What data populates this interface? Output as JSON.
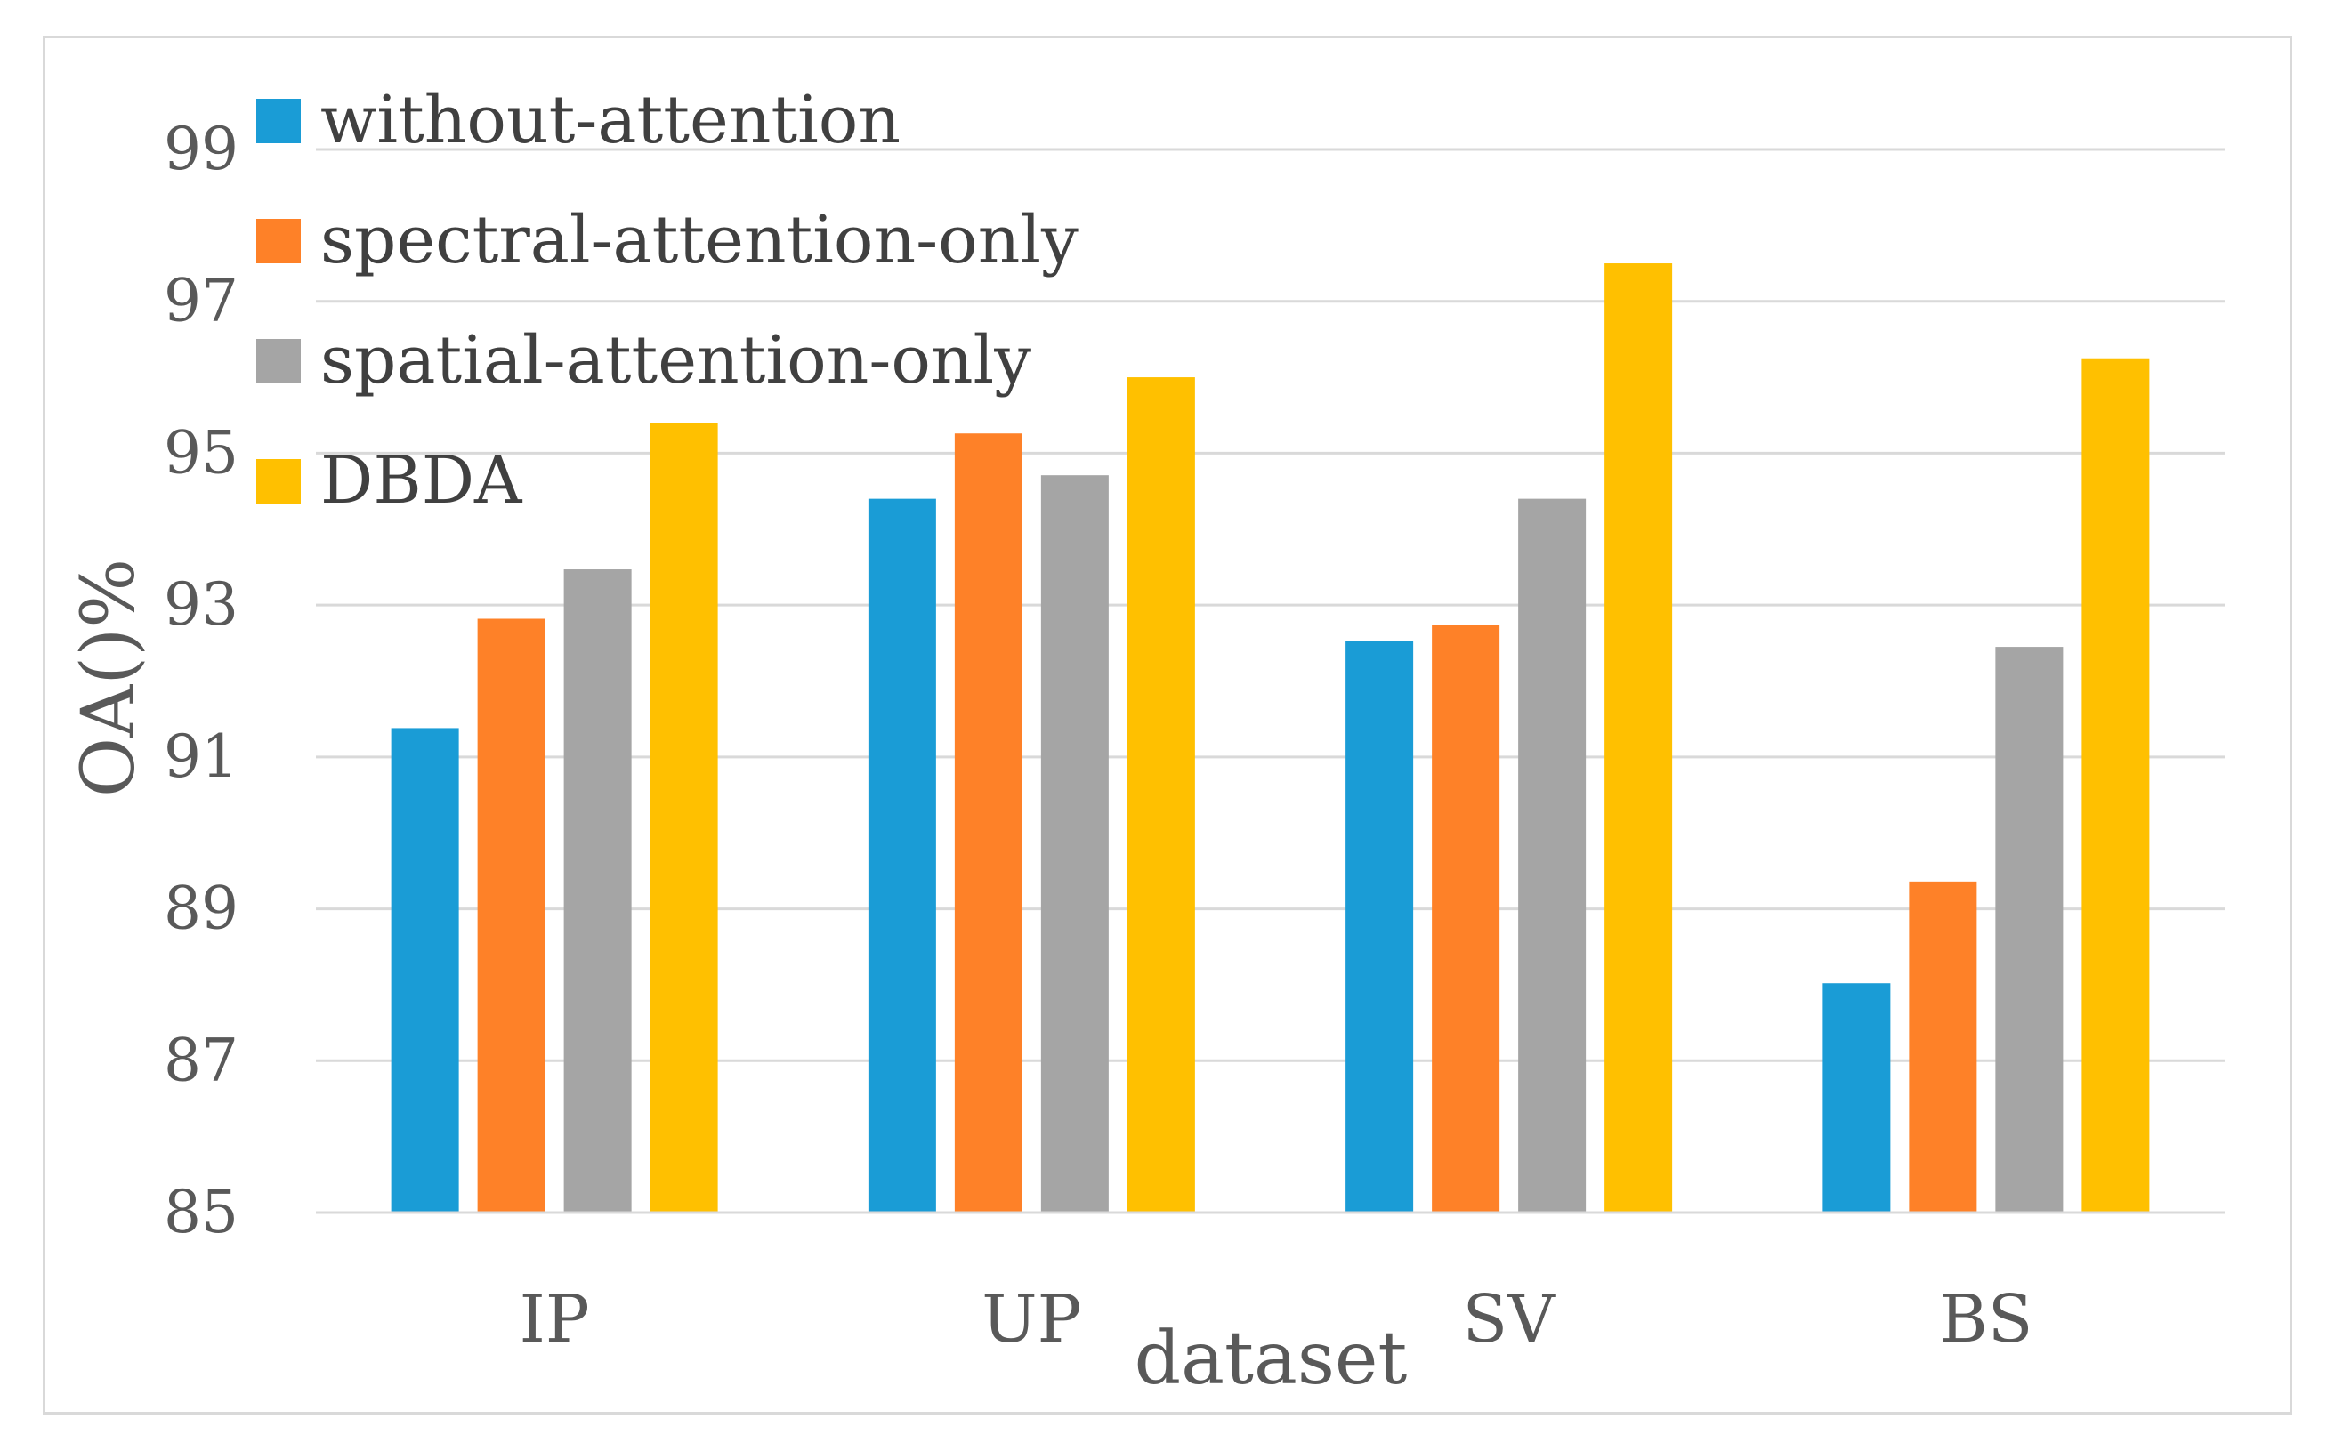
{
  "chart_data": {
    "type": "bar",
    "title": "",
    "xlabel": "dataset",
    "ylabel": "OA()%",
    "ylim": [
      85,
      99
    ],
    "yticks": [
      85,
      87,
      89,
      91,
      93,
      95,
      97,
      99
    ],
    "grid": true,
    "legend_position": "top-left",
    "categories": [
      "IP",
      "UP",
      "SV",
      "BS"
    ],
    "series": [
      {
        "name": "without-attention",
        "color": "#1a9cd6",
        "values": [
          91.38,
          94.4,
          92.53,
          88.02
        ]
      },
      {
        "name": "spectral-attention-only",
        "color": "#fe8128",
        "values": [
          92.82,
          95.26,
          92.74,
          89.36
        ]
      },
      {
        "name": "spatial-attention-only",
        "color": "#a5a5a5",
        "values": [
          93.47,
          94.71,
          94.4,
          92.45
        ]
      },
      {
        "name": "DBDA",
        "color": "#ffc000",
        "values": [
          95.4,
          96.0,
          97.5,
          96.25
        ]
      }
    ]
  }
}
